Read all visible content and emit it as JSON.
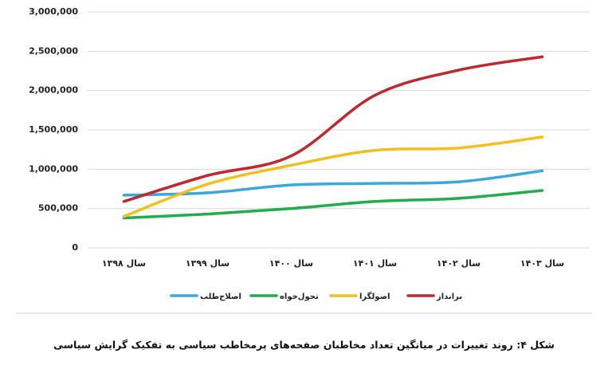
{
  "chart_data": {
    "type": "line",
    "categories": [
      "سال ۱۳۹۸",
      "سال ۱۳۹۹",
      "سال ۱۴۰۰",
      "سال ۱۴۰۱",
      "سال ۱۴۰۲",
      "سال ۱۴۰۳"
    ],
    "series": [
      {
        "name": "اصلاح‌طلب",
        "color": "#3aa8df",
        "values": [
          670000,
          700000,
          800000,
          820000,
          840000,
          980000
        ]
      },
      {
        "name": "تحول‌خواه",
        "color": "#1fae4b",
        "values": [
          380000,
          430000,
          500000,
          590000,
          630000,
          730000
        ]
      },
      {
        "name": "اصولگرا",
        "color": "#f5bf1b",
        "values": [
          400000,
          810000,
          1050000,
          1240000,
          1270000,
          1410000
        ]
      },
      {
        "name": "برانداز",
        "color": "#c0282d",
        "values": [
          590000,
          920000,
          1170000,
          1940000,
          2260000,
          2430000
        ]
      }
    ],
    "ylim": [
      0,
      3000000
    ],
    "yticks": [
      0,
      {
        "value": 500000,
        "label": "500,000"
      },
      {
        "value": 1000000,
        "label": "1,000,000"
      },
      {
        "value": 1500000,
        "label": "1,500,000"
      },
      {
        "value": 2000000,
        "label": "2,000,000"
      },
      {
        "value": 2500000,
        "label": "2,500,000"
      },
      {
        "value": 3000000,
        "label": "3,000,000"
      }
    ],
    "grid": true,
    "legend": "bottom",
    "caption": "شکل ۴: روند تغییرات در میانگین تعداد مخاطبان صفحه‌های پرمخاطب سیاسی به تفکیک گرایش سیاسی"
  }
}
